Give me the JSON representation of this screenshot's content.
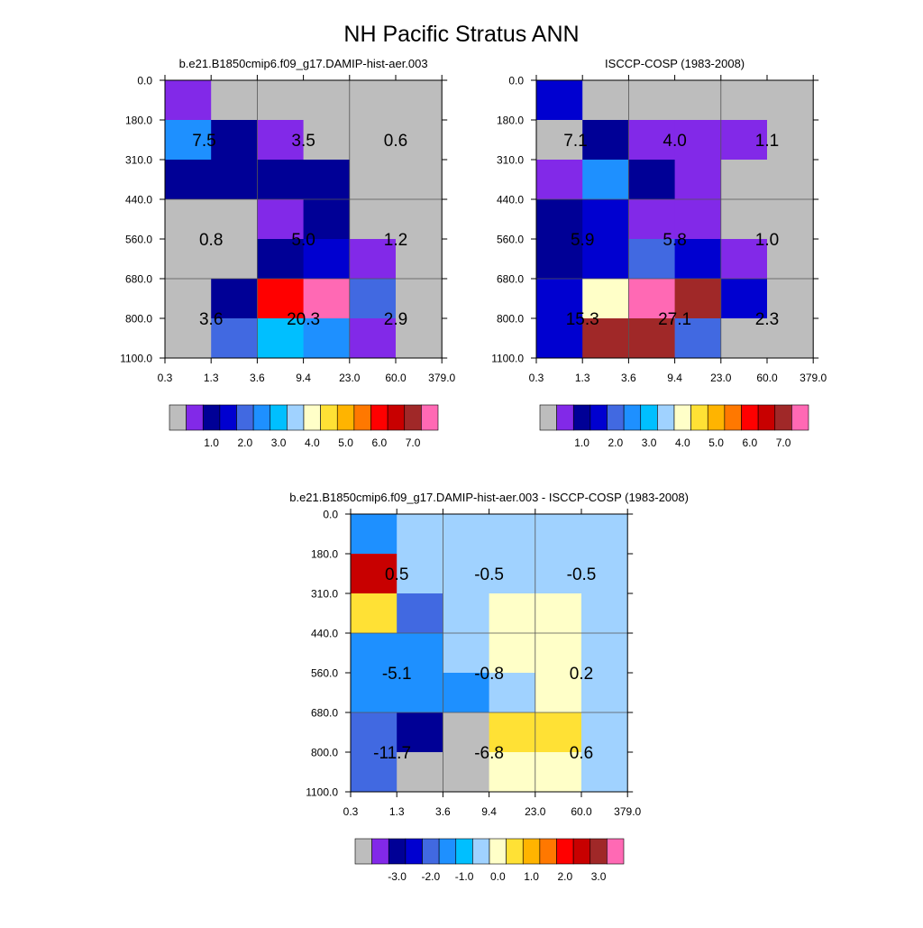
{
  "figure": {
    "title": "NH Pacific Stratus ANN"
  },
  "colors": {
    "background": "#ffffff",
    "grid": "#555555",
    "palette": [
      "#bdbdbd",
      "#8229e8",
      "#000096",
      "#0000d0",
      "#4169e1",
      "#1e90ff",
      "#00bfff",
      "#a0d2ff",
      "#ffffc8",
      "#ffe135",
      "#ffb400",
      "#ff7800",
      "#ff0000",
      "#c80000",
      "#a02828",
      "#ff69b4"
    ]
  },
  "chart_data": [
    {
      "type": "heatmap",
      "title": "b.e21.B1850cmip6.f09_g17.DAMIP-hist-aer.003",
      "x_tick_labels": [
        "0.3",
        "1.3",
        "3.6",
        "9.4",
        "23.0",
        "60.0",
        "379.0"
      ],
      "y_tick_labels": [
        "0.0",
        "180.0",
        "310.0",
        "440.0",
        "560.0",
        "680.0",
        "800.0",
        "1100.0"
      ],
      "cell_color_index": [
        [
          1,
          0,
          0,
          0,
          0,
          0
        ],
        [
          5,
          2,
          1,
          0,
          0,
          0
        ],
        [
          2,
          2,
          2,
          2,
          0,
          0
        ],
        [
          0,
          0,
          1,
          2,
          0,
          0
        ],
        [
          0,
          0,
          2,
          3,
          1,
          0
        ],
        [
          0,
          2,
          12,
          15,
          4,
          0
        ],
        [
          0,
          4,
          6,
          5,
          1,
          0
        ]
      ],
      "cell_labels": [
        {
          "text": "7.5",
          "col": 0.85,
          "row": 1.5
        },
        {
          "text": "3.5",
          "col": 3.0,
          "row": 1.5
        },
        {
          "text": "0.6",
          "col": 5.0,
          "row": 1.5
        },
        {
          "text": "0.8",
          "col": 1.0,
          "row": 4.0
        },
        {
          "text": "5.0",
          "col": 3.0,
          "row": 4.0
        },
        {
          "text": "1.2",
          "col": 5.0,
          "row": 4.0
        },
        {
          "text": "3.6",
          "col": 1.0,
          "row": 6.0
        },
        {
          "text": "20.3",
          "col": 3.0,
          "row": 6.0
        },
        {
          "text": "2.9",
          "col": 5.0,
          "row": 6.0
        }
      ],
      "colorbar": {
        "labels": [
          "1.0",
          "2.0",
          "3.0",
          "4.0",
          "5.0",
          "6.0",
          "7.0"
        ]
      }
    },
    {
      "type": "heatmap",
      "title": "ISCCP-COSP (1983-2008)",
      "x_tick_labels": [
        "0.3",
        "1.3",
        "3.6",
        "9.4",
        "23.0",
        "60.0",
        "379.0"
      ],
      "y_tick_labels": [
        "0.0",
        "180.0",
        "310.0",
        "440.0",
        "560.0",
        "680.0",
        "800.0",
        "1100.0"
      ],
      "cell_color_index": [
        [
          3,
          0,
          0,
          0,
          0,
          0
        ],
        [
          0,
          2,
          1,
          1,
          1,
          0
        ],
        [
          1,
          5,
          2,
          1,
          0,
          0
        ],
        [
          2,
          3,
          1,
          1,
          0,
          0
        ],
        [
          2,
          3,
          4,
          3,
          1,
          0
        ],
        [
          3,
          8,
          15,
          14,
          3,
          0
        ],
        [
          3,
          14,
          14,
          4,
          0,
          0
        ]
      ],
      "cell_labels": [
        {
          "text": "7.1",
          "col": 0.85,
          "row": 1.5
        },
        {
          "text": "4.0",
          "col": 3.0,
          "row": 1.5
        },
        {
          "text": "1.1",
          "col": 5.0,
          "row": 1.5
        },
        {
          "text": "5.9",
          "col": 1.0,
          "row": 4.0
        },
        {
          "text": "5.8",
          "col": 3.0,
          "row": 4.0
        },
        {
          "text": "1.0",
          "col": 5.0,
          "row": 4.0
        },
        {
          "text": "15.3",
          "col": 1.0,
          "row": 6.0
        },
        {
          "text": "27.1",
          "col": 3.0,
          "row": 6.0
        },
        {
          "text": "2.3",
          "col": 5.0,
          "row": 6.0
        }
      ],
      "colorbar": {
        "labels": [
          "1.0",
          "2.0",
          "3.0",
          "4.0",
          "5.0",
          "6.0",
          "7.0"
        ]
      }
    },
    {
      "type": "heatmap",
      "title": "b.e21.B1850cmip6.f09_g17.DAMIP-hist-aer.003 - ISCCP-COSP (1983-2008)",
      "x_tick_labels": [
        "0.3",
        "1.3",
        "3.6",
        "9.4",
        "23.0",
        "60.0",
        "379.0"
      ],
      "y_tick_labels": [
        "0.0",
        "180.0",
        "310.0",
        "440.0",
        "560.0",
        "680.0",
        "800.0",
        "1100.0"
      ],
      "cell_color_index": [
        [
          5,
          7,
          7,
          7,
          7,
          7
        ],
        [
          13,
          7,
          7,
          7,
          7,
          7
        ],
        [
          9,
          4,
          7,
          8,
          8,
          7
        ],
        [
          5,
          5,
          7,
          8,
          8,
          7
        ],
        [
          5,
          5,
          5,
          7,
          8,
          7
        ],
        [
          4,
          2,
          0,
          9,
          9,
          7
        ],
        [
          4,
          0,
          0,
          8,
          8,
          7
        ]
      ],
      "cell_labels": [
        {
          "text": "0.5",
          "col": 1.0,
          "row": 1.5
        },
        {
          "text": "-0.5",
          "col": 3.0,
          "row": 1.5
        },
        {
          "text": "-0.5",
          "col": 5.0,
          "row": 1.5
        },
        {
          "text": "-5.1",
          "col": 1.0,
          "row": 4.0
        },
        {
          "text": "-0.8",
          "col": 3.0,
          "row": 4.0
        },
        {
          "text": "0.2",
          "col": 5.0,
          "row": 4.0
        },
        {
          "text": "-11.7",
          "col": 0.9,
          "row": 6.0
        },
        {
          "text": "-6.8",
          "col": 3.0,
          "row": 6.0
        },
        {
          "text": "0.6",
          "col": 5.0,
          "row": 6.0
        }
      ],
      "colorbar": {
        "labels": [
          "-3.0",
          "-2.0",
          "-1.0",
          "0.0",
          "1.0",
          "2.0",
          "3.0"
        ]
      }
    }
  ]
}
